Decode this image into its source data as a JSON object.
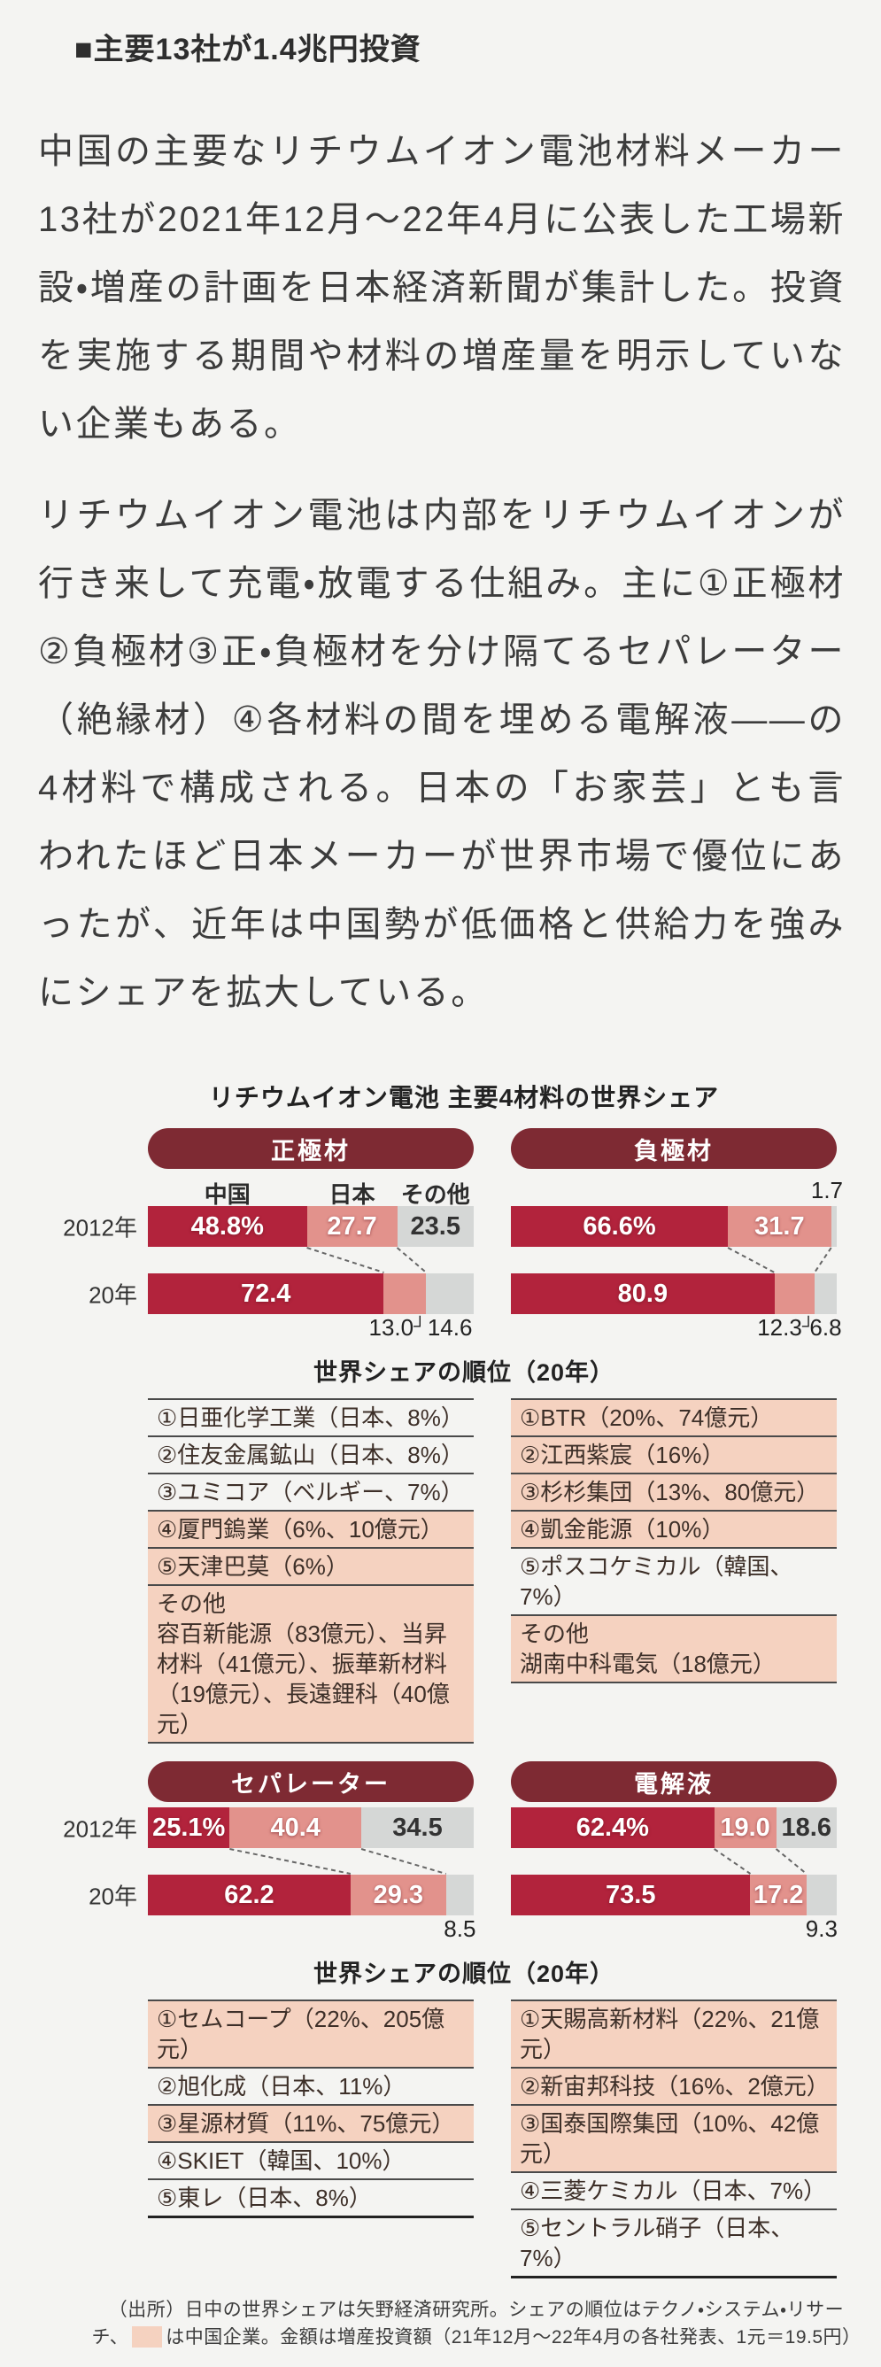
{
  "headline": "■主要13社が1.4兆円投資",
  "paragraphs": [
    "中国の主要なリチウムイオン電池材料メーカー13社が2021年12月～22年4月に公表した工場新設・増産の計画を日本経済新聞が集計した。投資を実施する期間や材料の増産量を明示していない企業もある。",
    "リチウムイオン電池は内部をリチウムイオンが行き来して充電・放電する仕組み。主に①正極材②負極材③正・負極材を分け隔てるセパレーター（絶縁材）④各材料の間を埋める電解液――の4材料で構成される。日本の「お家芸」とも言われたほど日本メーカーが世界市場で優位にあったが、近年は中国勢が低価格と供給力を強みにシェアを拡大している。"
  ],
  "figure": {
    "title": "リチウムイオン電池 主要4材料の世界シェア",
    "series_labels": [
      "中国",
      "日本",
      "その他"
    ],
    "ranking_heading": "世界シェアの順位（20年）",
    "colors": {
      "china": "#b2233c",
      "japan": "#e2928c",
      "other": "#d5d7d6",
      "pill": "#7e2a33",
      "peach": "#f5d2c0",
      "pagebg": "#f4f4f2",
      "ink": "#3c3c3c"
    },
    "materials": [
      {
        "key": "cathode",
        "name": "正極材",
        "rows": [
          {
            "label": "2012年",
            "segments": [
              {
                "v": 48.8,
                "text": "48.8%",
                "pos": "in"
              },
              {
                "v": 27.7,
                "text": "27.7",
                "pos": "in"
              },
              {
                "v": 23.5,
                "text": "23.5",
                "pos": "in"
              }
            ]
          },
          {
            "label": "20年",
            "segments": [
              {
                "v": 72.4,
                "text": "72.4",
                "pos": "in"
              },
              {
                "v": 13.0,
                "text": "13.0",
                "pos": "below-corner"
              },
              {
                "v": 14.6,
                "text": "14.6",
                "pos": "below"
              }
            ]
          }
        ],
        "ranking": [
          {
            "text": "①日亜化学工業（日本、8%）",
            "cn": false
          },
          {
            "text": "②住友金属鉱山（日本、8%）",
            "cn": false
          },
          {
            "text": "③ユミコア（ベルギー、7%）",
            "cn": false
          },
          {
            "text": "④厦門鎢業（6%、10億元）",
            "cn": true
          },
          {
            "text": "⑤天津巴莫（6%）",
            "cn": true
          },
          {
            "text": "その他\n容百新能源（83億元）、当昇材料（41億元）、振華新材料（19億元）、長遠鋰科（40億元）",
            "cn": true
          }
        ]
      },
      {
        "key": "anode",
        "name": "負極材",
        "rows": [
          {
            "label": "2012年",
            "segments": [
              {
                "v": 66.6,
                "text": "66.6%",
                "pos": "in"
              },
              {
                "v": 31.7,
                "text": "31.7",
                "pos": "in"
              },
              {
                "v": 1.7,
                "text": "1.7",
                "pos": "above"
              }
            ]
          },
          {
            "label": "20年",
            "segments": [
              {
                "v": 80.9,
                "text": "80.9",
                "pos": "in"
              },
              {
                "v": 12.3,
                "text": "12.3",
                "pos": "below-corner"
              },
              {
                "v": 6.8,
                "text": "6.8",
                "pos": "below"
              }
            ]
          }
        ],
        "ranking": [
          {
            "text": "①BTR（20%、74億元）",
            "cn": true
          },
          {
            "text": "②江西紫宸（16%）",
            "cn": true
          },
          {
            "text": "③杉杉集団（13%、80億元）",
            "cn": true
          },
          {
            "text": "④凱金能源（10%）",
            "cn": true
          },
          {
            "text": "⑤ポスコケミカル（韓国、7%）",
            "cn": false
          },
          {
            "text": "その他\n湖南中科電気（18億元）",
            "cn": true
          }
        ]
      },
      {
        "key": "separator",
        "name": "セパレーター",
        "rows": [
          {
            "label": "2012年",
            "segments": [
              {
                "v": 25.1,
                "text": "25.1%",
                "pos": "in"
              },
              {
                "v": 40.4,
                "text": "40.4",
                "pos": "in"
              },
              {
                "v": 34.5,
                "text": "34.5",
                "pos": "in"
              }
            ]
          },
          {
            "label": "20年",
            "segments": [
              {
                "v": 62.2,
                "text": "62.2",
                "pos": "in"
              },
              {
                "v": 29.3,
                "text": "29.3",
                "pos": "in"
              },
              {
                "v": 8.5,
                "text": "8.5",
                "pos": "below"
              }
            ]
          }
        ],
        "ranking": [
          {
            "text": "①セムコープ（22%、205億元）",
            "cn": true
          },
          {
            "text": "②旭化成（日本、11%）",
            "cn": false
          },
          {
            "text": "③星源材質（11%、75億元）",
            "cn": true
          },
          {
            "text": "④SKIET（韓国、10%）",
            "cn": false
          },
          {
            "text": "⑤東レ（日本、8%）",
            "cn": false
          }
        ]
      },
      {
        "key": "electrolyte",
        "name": "電解液",
        "rows": [
          {
            "label": "2012年",
            "segments": [
              {
                "v": 62.4,
                "text": "62.4%",
                "pos": "in"
              },
              {
                "v": 19.0,
                "text": "19.0",
                "pos": "in"
              },
              {
                "v": 18.6,
                "text": "18.6",
                "pos": "in"
              }
            ]
          },
          {
            "label": "20年",
            "segments": [
              {
                "v": 73.5,
                "text": "73.5",
                "pos": "in"
              },
              {
                "v": 17.2,
                "text": "17.2",
                "pos": "in"
              },
              {
                "v": 9.3,
                "text": "9.3",
                "pos": "below"
              }
            ]
          }
        ],
        "ranking": [
          {
            "text": "①天賜高新材料（22%、21億元）",
            "cn": true
          },
          {
            "text": "②新宙邦科技（16%、2億元）",
            "cn": true
          },
          {
            "text": "③国泰国際集団（10%、42億元）",
            "cn": true
          },
          {
            "text": "④三菱ケミカル（日本、7%）",
            "cn": false
          },
          {
            "text": "⑤セントラル硝子（日本、7%）",
            "cn": false
          }
        ]
      }
    ],
    "source_note": {
      "part1": "（出所）日中の世界シェアは矢野経済研究所。シェアの順位はテクノ・システム・リサーチ、",
      "part2": "は中国企業。金額は増産投資額（21年12月～22年4月の各社発表、1元＝19.5円）"
    }
  },
  "chart_data": [
    {
      "type": "bar",
      "stacked": true,
      "title": "正極材",
      "unit": "%",
      "categories": [
        "2012年",
        "20年"
      ],
      "series": [
        {
          "name": "中国",
          "values": [
            48.8,
            72.4
          ]
        },
        {
          "name": "日本",
          "values": [
            27.7,
            13.0
          ]
        },
        {
          "name": "その他",
          "values": [
            23.5,
            14.6
          ]
        }
      ]
    },
    {
      "type": "bar",
      "stacked": true,
      "title": "負極材",
      "unit": "%",
      "categories": [
        "2012年",
        "20年"
      ],
      "series": [
        {
          "name": "中国",
          "values": [
            66.6,
            80.9
          ]
        },
        {
          "name": "日本",
          "values": [
            31.7,
            12.3
          ]
        },
        {
          "name": "その他",
          "values": [
            1.7,
            6.8
          ]
        }
      ]
    },
    {
      "type": "bar",
      "stacked": true,
      "title": "セパレーター",
      "unit": "%",
      "categories": [
        "2012年",
        "20年"
      ],
      "series": [
        {
          "name": "中国",
          "values": [
            25.1,
            62.2
          ]
        },
        {
          "name": "日本",
          "values": [
            40.4,
            29.3
          ]
        },
        {
          "name": "その他",
          "values": [
            34.5,
            8.5
          ]
        }
      ]
    },
    {
      "type": "bar",
      "stacked": true,
      "title": "電解液",
      "unit": "%",
      "categories": [
        "2012年",
        "20年"
      ],
      "series": [
        {
          "name": "中国",
          "values": [
            62.4,
            73.5
          ]
        },
        {
          "name": "日本",
          "values": [
            19.0,
            17.2
          ]
        },
        {
          "name": "その他",
          "values": [
            18.6,
            9.3
          ]
        }
      ]
    }
  ]
}
